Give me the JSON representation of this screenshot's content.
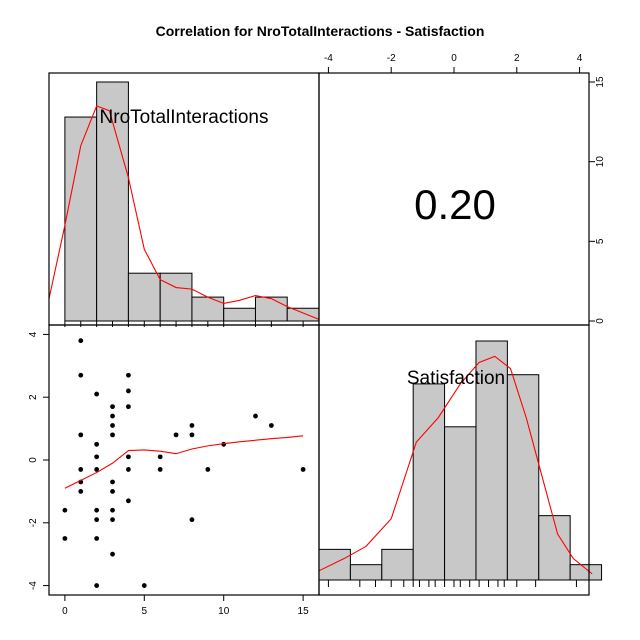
{
  "chart_data": {
    "type": "scatter",
    "title": "Correlation  for NroTotalInteractions - Satisfaction",
    "variables": [
      "NroTotalInteractions",
      "Satisfaction"
    ],
    "correlation": "0.20",
    "x_range": [
      -1,
      16
    ],
    "y_range": [
      -4.3,
      4.3
    ],
    "x_ticks": [
      0,
      5,
      10,
      15
    ],
    "y_ticks": [
      -4,
      -2,
      0,
      2,
      4
    ],
    "hist_count_ticks": [
      0,
      5,
      10,
      15
    ],
    "hist1": {
      "breaks": [
        0,
        2,
        4,
        6,
        8,
        10,
        12,
        14,
        16
      ],
      "counts": [
        12.8,
        15,
        3,
        3,
        1.5,
        0.8,
        1.5,
        0.8
      ],
      "density": [
        [
          -1,
          1.4
        ],
        [
          0,
          6
        ],
        [
          1,
          11
        ],
        [
          2,
          13.5
        ],
        [
          2.8,
          13.2
        ],
        [
          4,
          9
        ],
        [
          5,
          4.5
        ],
        [
          6,
          2.6
        ],
        [
          7,
          2.1
        ],
        [
          8,
          2
        ],
        [
          9,
          1.5
        ],
        [
          10,
          1.1
        ],
        [
          11,
          1.3
        ],
        [
          12,
          1.6
        ],
        [
          13,
          1.4
        ],
        [
          14,
          0.9
        ],
        [
          15,
          0.5
        ],
        [
          16,
          0.1
        ]
      ],
      "rug": [
        0,
        1,
        2,
        3,
        4,
        5,
        6,
        7,
        8,
        9,
        10,
        12,
        13,
        15
      ]
    },
    "hist2": {
      "breaks": [
        -4.3,
        -3.3,
        -2.3,
        -1.3,
        -0.3,
        0.7,
        1.7,
        2.7,
        3.7,
        4.7
      ],
      "counts": [
        1,
        0.5,
        1,
        6.4,
        5,
        7.8,
        6.7,
        2.1,
        0.5
      ],
      "density": [
        [
          -4.3,
          0.3
        ],
        [
          -3.5,
          0.7
        ],
        [
          -2.8,
          1.1
        ],
        [
          -2,
          2
        ],
        [
          -1.2,
          4.5
        ],
        [
          -0.5,
          5.3
        ],
        [
          0.2,
          6.4
        ],
        [
          0.8,
          7.1
        ],
        [
          1.3,
          7.3
        ],
        [
          1.8,
          6.9
        ],
        [
          2.3,
          5.3
        ],
        [
          2.8,
          3.4
        ],
        [
          3.3,
          1.5
        ],
        [
          3.8,
          0.7
        ],
        [
          4.4,
          0.2
        ]
      ],
      "rug": [
        -4,
        -3,
        -2.5,
        -2,
        -1.6,
        -1.3,
        -1.1,
        -0.8,
        -0.6,
        -0.3,
        0,
        0.2,
        0.5,
        0.8,
        1.1,
        1.4,
        1.6,
        2,
        2.6,
        3.9
      ]
    },
    "points": [
      [
        0,
        -1.6
      ],
      [
        0,
        -2.5
      ],
      [
        1,
        3.8
      ],
      [
        1,
        2.7
      ],
      [
        1,
        0.8
      ],
      [
        1,
        -0.3
      ],
      [
        1,
        -0.7
      ],
      [
        1,
        -1
      ],
      [
        2,
        2.1
      ],
      [
        2,
        0.5
      ],
      [
        2,
        0.1
      ],
      [
        2,
        -0.3
      ],
      [
        2,
        -1.6
      ],
      [
        2,
        -1.9
      ],
      [
        2,
        -2.5
      ],
      [
        2,
        -4
      ],
      [
        3,
        1.7
      ],
      [
        3,
        1.4
      ],
      [
        3,
        1.1
      ],
      [
        3,
        0.8
      ],
      [
        3,
        -0.7
      ],
      [
        3,
        -1
      ],
      [
        3,
        -1.6
      ],
      [
        3,
        -1.9
      ],
      [
        3,
        -3
      ],
      [
        4,
        2.7
      ],
      [
        4,
        2.2
      ],
      [
        4,
        1.7
      ],
      [
        4,
        0.1
      ],
      [
        4,
        -0.3
      ],
      [
        4,
        -1.3
      ],
      [
        5,
        -4
      ],
      [
        6,
        0.1
      ],
      [
        6,
        -0.3
      ],
      [
        7,
        0.8
      ],
      [
        8,
        1.1
      ],
      [
        8,
        0.8
      ],
      [
        8,
        -1.9
      ],
      [
        9,
        -0.3
      ],
      [
        10,
        0.5
      ],
      [
        12,
        1.4
      ],
      [
        13,
        1.1
      ],
      [
        15,
        -0.3
      ]
    ],
    "smooth": [
      [
        0,
        -0.9
      ],
      [
        1,
        -0.65
      ],
      [
        2,
        -0.4
      ],
      [
        3,
        -0.1
      ],
      [
        4,
        0.3
      ],
      [
        5,
        0.32
      ],
      [
        6,
        0.28
      ],
      [
        7,
        0.2
      ],
      [
        8,
        0.35
      ],
      [
        9,
        0.45
      ],
      [
        10,
        0.52
      ],
      [
        11,
        0.58
      ],
      [
        12,
        0.63
      ],
      [
        13,
        0.68
      ],
      [
        14,
        0.72
      ],
      [
        15,
        0.77
      ]
    ]
  }
}
